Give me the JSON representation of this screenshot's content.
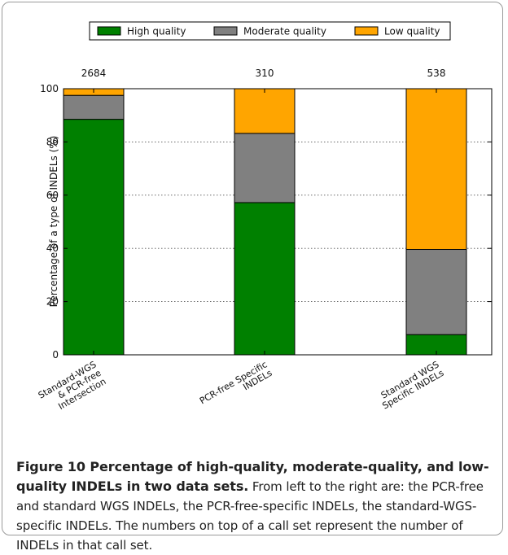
{
  "chart_data": {
    "type": "bar",
    "stacked": true,
    "categories": [
      "Standard-WGS & PCR-free Intersection",
      "PCR-free Specific INDELs",
      "Standard WGS Specific INDELs"
    ],
    "category_lines": [
      [
        "Standard-WGS",
        "& PCR-free",
        "Intersection"
      ],
      [
        "PCR-free Specific",
        "INDELs"
      ],
      [
        "Standard WGS",
        "Specific INDELs"
      ]
    ],
    "counts": [
      "2684",
      "310",
      "538"
    ],
    "series": [
      {
        "name": "High quality",
        "color": "#008000",
        "values": [
          88.5,
          57.2,
          7.6
        ]
      },
      {
        "name": "Moderate quality",
        "color": "#808080",
        "values": [
          9.0,
          26.0,
          32.0
        ]
      },
      {
        "name": "Low quality",
        "color": "#ffa500",
        "values": [
          2.5,
          16.8,
          60.4
        ]
      }
    ],
    "ylabel": "Percentage of a type of INDELs (%)",
    "xlabel": "",
    "ylim": [
      0,
      100
    ],
    "yticks": [
      "0",
      "20",
      "40",
      "60",
      "80",
      "100"
    ],
    "grid": "horizontal dotted",
    "legend_position": "top"
  },
  "caption": {
    "title": "Figure 10 Percentage of high-quality, moderate-quality, and low-quality INDELs in two data sets.",
    "body": "From left to the right are: the PCR-free and standard WGS INDELs, the PCR-free-specific INDELs, the standard-WGS-specific INDELs. The numbers on top of a call set represent the number of INDELs in that call set."
  }
}
